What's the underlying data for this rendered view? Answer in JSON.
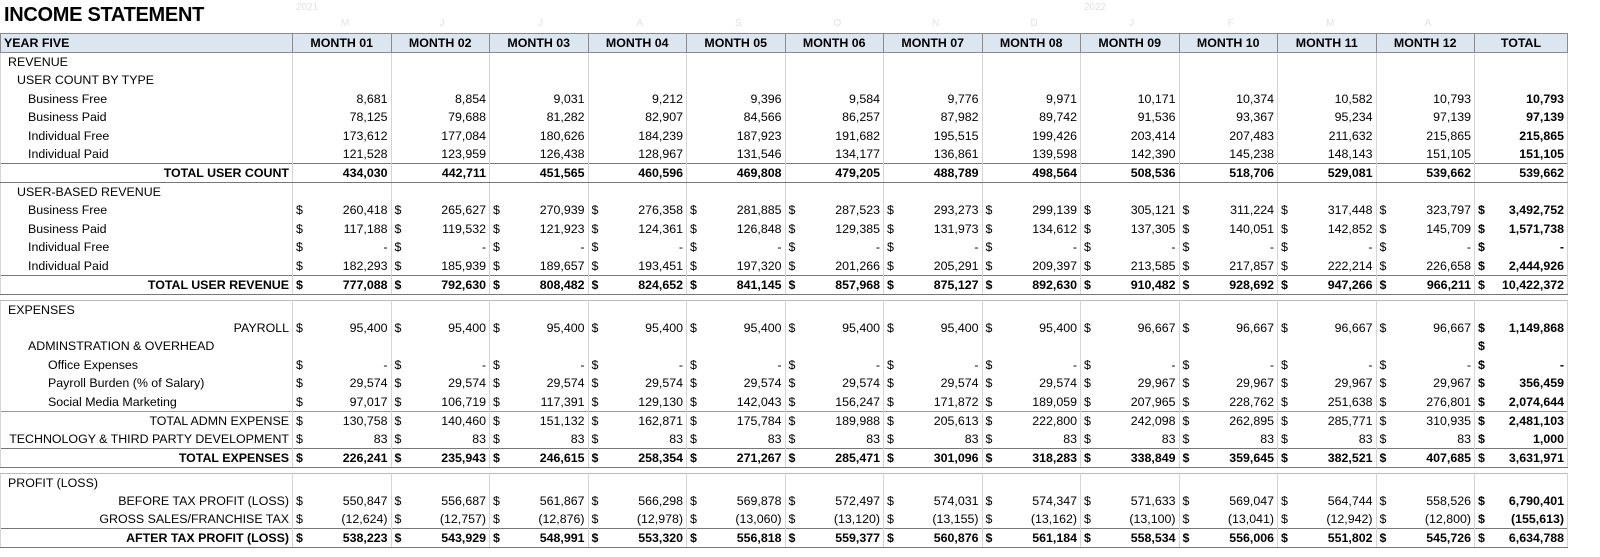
{
  "title": "INCOME STATEMENT",
  "year_markers": [
    "2021",
    "2022"
  ],
  "month_initials": [
    "M",
    "J",
    "J",
    "A",
    "S",
    "O",
    "N",
    "D",
    "J",
    "F",
    "M",
    "A"
  ],
  "table": {
    "currency_symbol": "$",
    "header": [
      "YEAR FIVE",
      "MONTH 01",
      "MONTH 02",
      "MONTH 03",
      "MONTH 04",
      "MONTH 05",
      "MONTH 06",
      "MONTH 07",
      "MONTH 08",
      "MONTH 09",
      "MONTH 10",
      "MONTH 11",
      "MONTH 12",
      "TOTAL"
    ],
    "rows": [
      {
        "label": "REVENUE",
        "kind": "section",
        "indent": 0
      },
      {
        "label": "USER COUNT BY TYPE",
        "kind": "section",
        "indent": 1
      },
      {
        "label": "Business Free",
        "kind": "item",
        "indent": 2,
        "values": [
          "8,681",
          "8,854",
          "9,031",
          "9,212",
          "9,396",
          "9,584",
          "9,776",
          "9,971",
          "10,171",
          "10,374",
          "10,582",
          "10,793"
        ],
        "total": "10,793"
      },
      {
        "label": "Business Paid",
        "kind": "item",
        "indent": 2,
        "values": [
          "78,125",
          "79,688",
          "81,282",
          "82,907",
          "84,566",
          "86,257",
          "87,982",
          "89,742",
          "91,536",
          "93,367",
          "95,234",
          "97,139"
        ],
        "total": "97,139"
      },
      {
        "label": "Individual Free",
        "kind": "item",
        "indent": 2,
        "values": [
          "173,612",
          "177,084",
          "180,626",
          "184,239",
          "187,923",
          "191,682",
          "195,515",
          "199,426",
          "203,414",
          "207,483",
          "211,632",
          "215,865"
        ],
        "total": "215,865"
      },
      {
        "label": "Individual Paid",
        "kind": "item",
        "indent": 2,
        "values": [
          "121,528",
          "123,959",
          "126,438",
          "128,967",
          "131,546",
          "134,177",
          "136,861",
          "139,598",
          "142,390",
          "145,238",
          "148,143",
          "151,105"
        ],
        "total": "151,105"
      },
      {
        "label": "TOTAL USER COUNT",
        "kind": "total",
        "align": "right",
        "values": [
          "434,030",
          "442,711",
          "451,565",
          "460,596",
          "469,808",
          "479,205",
          "488,789",
          "498,564",
          "508,536",
          "518,706",
          "529,081",
          "539,662"
        ],
        "total": "539,662"
      },
      {
        "label": "USER-BASED REVENUE",
        "kind": "section",
        "indent": 1
      },
      {
        "label": "Business Free",
        "kind": "item",
        "indent": 2,
        "currency": true,
        "values": [
          "260,418",
          "265,627",
          "270,939",
          "276,358",
          "281,885",
          "287,523",
          "293,273",
          "299,139",
          "305,121",
          "311,224",
          "317,448",
          "323,797"
        ],
        "total": "3,492,752"
      },
      {
        "label": "Business Paid",
        "kind": "item",
        "indent": 2,
        "currency": true,
        "values": [
          "117,188",
          "119,532",
          "121,923",
          "124,361",
          "126,848",
          "129,385",
          "131,973",
          "134,612",
          "137,305",
          "140,051",
          "142,852",
          "145,709"
        ],
        "total": "1,571,738"
      },
      {
        "label": "Individual Free",
        "kind": "item",
        "indent": 2,
        "currency": true,
        "values": [
          "-",
          "-",
          "-",
          "-",
          "-",
          "-",
          "-",
          "-",
          "-",
          "-",
          "-",
          "-"
        ],
        "total": "-"
      },
      {
        "label": "Individual Paid",
        "kind": "item",
        "indent": 2,
        "currency": true,
        "values": [
          "182,293",
          "185,939",
          "189,657",
          "193,451",
          "197,320",
          "201,266",
          "205,291",
          "209,397",
          "213,585",
          "217,857",
          "222,214",
          "226,658"
        ],
        "total": "2,444,926"
      },
      {
        "label": "TOTAL USER REVENUE",
        "kind": "total",
        "align": "right",
        "currency": true,
        "values": [
          "777,088",
          "792,630",
          "808,482",
          "824,652",
          "841,145",
          "857,968",
          "875,127",
          "892,630",
          "910,482",
          "928,692",
          "947,266",
          "966,211"
        ],
        "total": "10,422,372"
      },
      {
        "label": "EXPENSES",
        "kind": "section",
        "indent": 0
      },
      {
        "label": "PAYROLL",
        "kind": "item",
        "align": "right",
        "currency": true,
        "values": [
          "95,400",
          "95,400",
          "95,400",
          "95,400",
          "95,400",
          "95,400",
          "95,400",
          "95,400",
          "96,667",
          "96,667",
          "96,667",
          "96,667"
        ],
        "total": "1,149,868"
      },
      {
        "label": "ADMINSTRATION & OVERHEAD",
        "kind": "section",
        "indent": 2,
        "currency": "total"
      },
      {
        "label": "Office Expenses",
        "kind": "item",
        "indent": 3,
        "currency": true,
        "values": [
          "-",
          "-",
          "-",
          "-",
          "-",
          "-",
          "-",
          "-",
          "-",
          "-",
          "-",
          "-"
        ],
        "total": "-"
      },
      {
        "label": "Payroll Burden (% of Salary)",
        "kind": "item",
        "indent": 3,
        "currency": true,
        "values": [
          "29,574",
          "29,574",
          "29,574",
          "29,574",
          "29,574",
          "29,574",
          "29,574",
          "29,574",
          "29,967",
          "29,967",
          "29,967",
          "29,967"
        ],
        "total": "356,459"
      },
      {
        "label": "Social Media Marketing",
        "kind": "item",
        "indent": 3,
        "currency": true,
        "values": [
          "97,017",
          "106,719",
          "117,391",
          "129,130",
          "142,043",
          "156,247",
          "171,872",
          "189,059",
          "207,965",
          "228,762",
          "251,638",
          "276,801"
        ],
        "total": "2,074,644"
      },
      {
        "label": "TOTAL ADMN EXPENSE",
        "kind": "subtotal",
        "align": "right",
        "currency": true,
        "values": [
          "130,758",
          "140,460",
          "151,132",
          "162,871",
          "175,784",
          "189,988",
          "205,613",
          "222,800",
          "242,098",
          "262,895",
          "285,771",
          "310,935"
        ],
        "total": "2,481,103"
      },
      {
        "label": "TECHNOLOGY & THIRD PARTY DEVELOPMENT",
        "kind": "item",
        "align": "right",
        "currency": true,
        "values": [
          "83",
          "83",
          "83",
          "83",
          "83",
          "83",
          "83",
          "83",
          "83",
          "83",
          "83",
          "83"
        ],
        "total": "1,000"
      },
      {
        "label": "TOTAL EXPENSES",
        "kind": "total",
        "align": "right",
        "currency": true,
        "values": [
          "226,241",
          "235,943",
          "246,615",
          "258,354",
          "271,267",
          "285,471",
          "301,096",
          "318,283",
          "338,849",
          "359,645",
          "382,521",
          "407,685"
        ],
        "total": "3,631,971"
      },
      {
        "label": "PROFIT (LOSS)",
        "kind": "section",
        "indent": 0
      },
      {
        "label": "BEFORE TAX PROFIT (LOSS)",
        "kind": "item",
        "align": "right",
        "currency": true,
        "values": [
          "550,847",
          "556,687",
          "561,867",
          "566,298",
          "569,878",
          "572,497",
          "574,031",
          "574,347",
          "571,633",
          "569,047",
          "564,744",
          "558,526"
        ],
        "total": "6,790,401"
      },
      {
        "label": "GROSS SALES/FRANCHISE TAX",
        "kind": "item",
        "align": "right",
        "currency": true,
        "values": [
          "(12,624)",
          "(12,757)",
          "(12,876)",
          "(12,978)",
          "(13,060)",
          "(13,120)",
          "(13,155)",
          "(13,162)",
          "(13,100)",
          "(13,041)",
          "(12,942)",
          "(12,800)"
        ],
        "total": "(155,613)"
      },
      {
        "label": "AFTER TAX PROFIT (LOSS)",
        "kind": "total",
        "align": "right",
        "currency": true,
        "values": [
          "538,223",
          "543,929",
          "548,991",
          "553,320",
          "556,818",
          "559,377",
          "560,876",
          "561,184",
          "558,534",
          "556,006",
          "551,802",
          "545,726"
        ],
        "total": "6,634,788"
      }
    ]
  }
}
